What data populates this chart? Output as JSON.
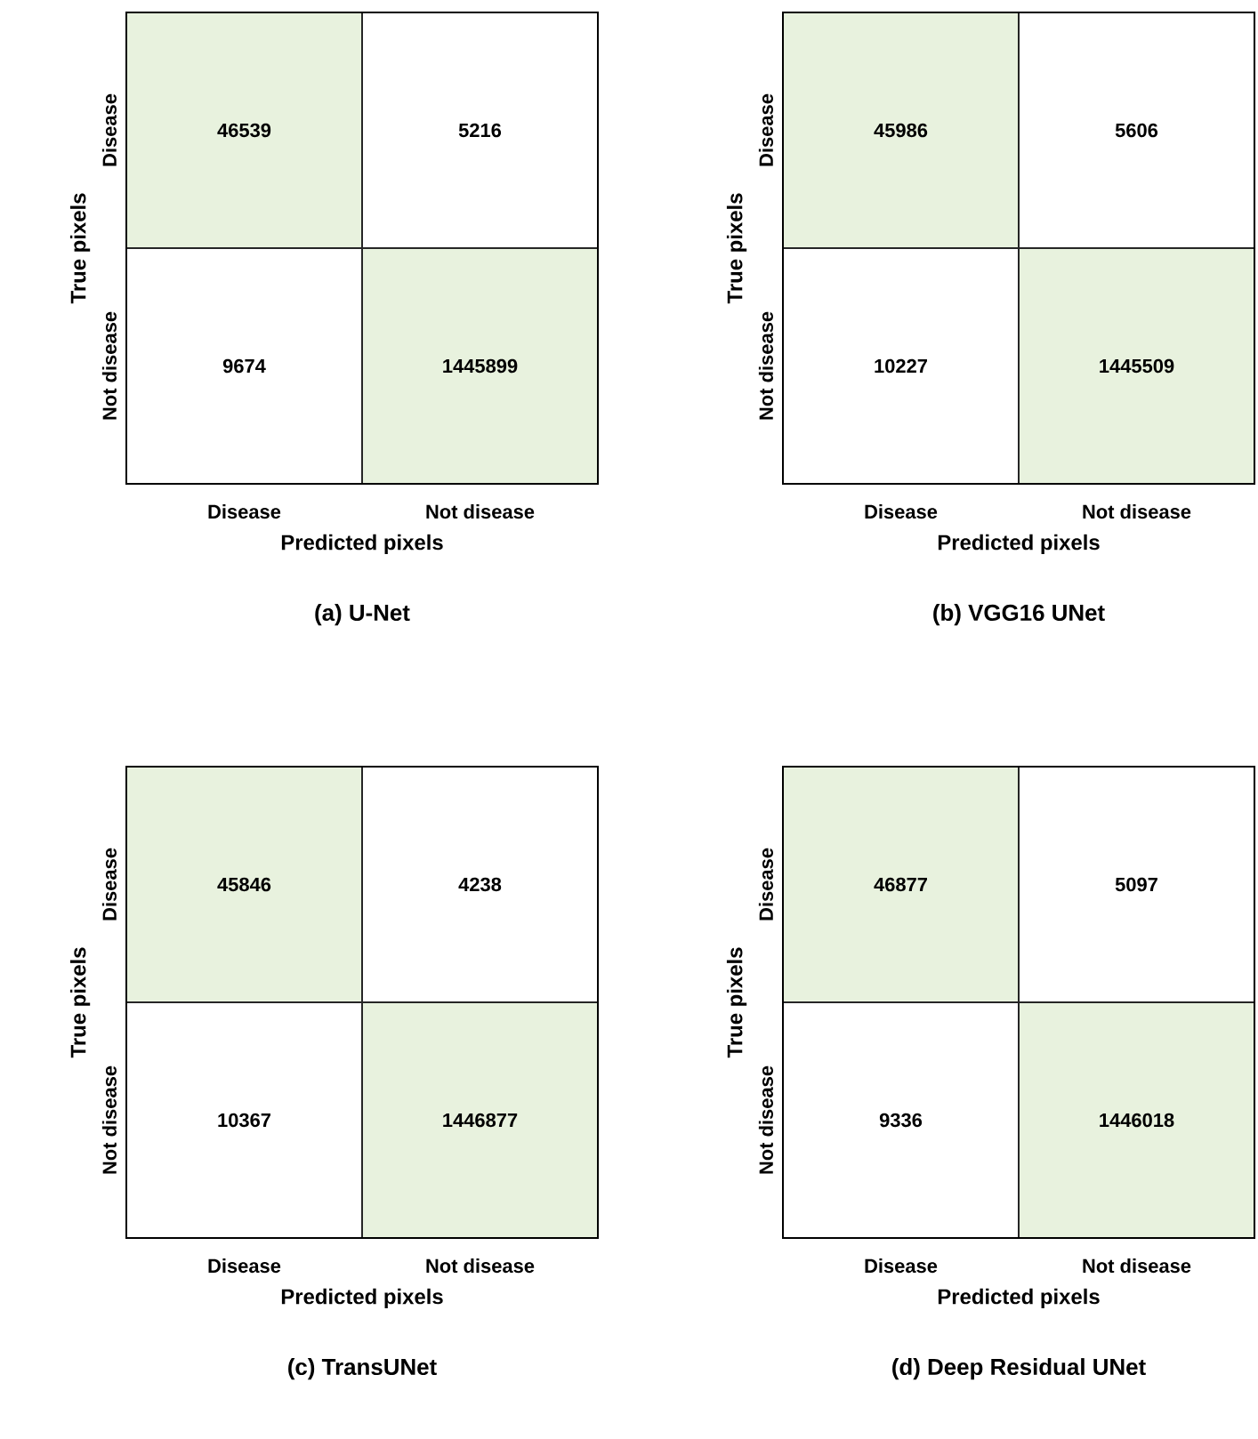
{
  "chart_data": [
    {
      "type": "heatmap",
      "title": "(a) U-Net",
      "xlabel": "Predicted pixels",
      "ylabel": "True pixels",
      "categories": [
        "Disease",
        "Not disease"
      ],
      "y_categories": [
        "Disease",
        "Not disease"
      ],
      "cells": [
        [
          46539,
          5216
        ],
        [
          9674,
          1445899
        ]
      ],
      "colors": [
        [
          "#e8f2de",
          "#ffffff"
        ],
        [
          "#ffffff",
          "#e8f2de"
        ]
      ],
      "data_labels": true
    },
    {
      "type": "heatmap",
      "title": "(b) VGG16 UNet",
      "xlabel": "Predicted pixels",
      "ylabel": "True pixels",
      "categories": [
        "Disease",
        "Not disease"
      ],
      "y_categories": [
        "Disease",
        "Not disease"
      ],
      "cells": [
        [
          45986,
          5606
        ],
        [
          10227,
          1445509
        ]
      ],
      "colors": [
        [
          "#e8f2de",
          "#ffffff"
        ],
        [
          "#ffffff",
          "#e8f2de"
        ]
      ],
      "data_labels": true
    },
    {
      "type": "heatmap",
      "title": "(c) TransUNet",
      "xlabel": "Predicted pixels",
      "ylabel": "True pixels",
      "categories": [
        "Disease",
        "Not disease"
      ],
      "y_categories": [
        "Disease",
        "Not disease"
      ],
      "cells": [
        [
          45846,
          4238
        ],
        [
          10367,
          1446877
        ]
      ],
      "colors": [
        [
          "#e8f2de",
          "#ffffff"
        ],
        [
          "#ffffff",
          "#e8f2de"
        ]
      ],
      "data_labels": true
    },
    {
      "type": "heatmap",
      "title": "(d) Deep Residual UNet",
      "xlabel": "Predicted pixels",
      "ylabel": "True pixels",
      "categories": [
        "Disease",
        "Not disease"
      ],
      "y_categories": [
        "Disease",
        "Not disease"
      ],
      "cells": [
        [
          46877,
          5097
        ],
        [
          9336,
          1446018
        ]
      ],
      "colors": [
        [
          "#e8f2de",
          "#ffffff"
        ],
        [
          "#ffffff",
          "#e8f2de"
        ]
      ],
      "data_labels": true
    }
  ]
}
